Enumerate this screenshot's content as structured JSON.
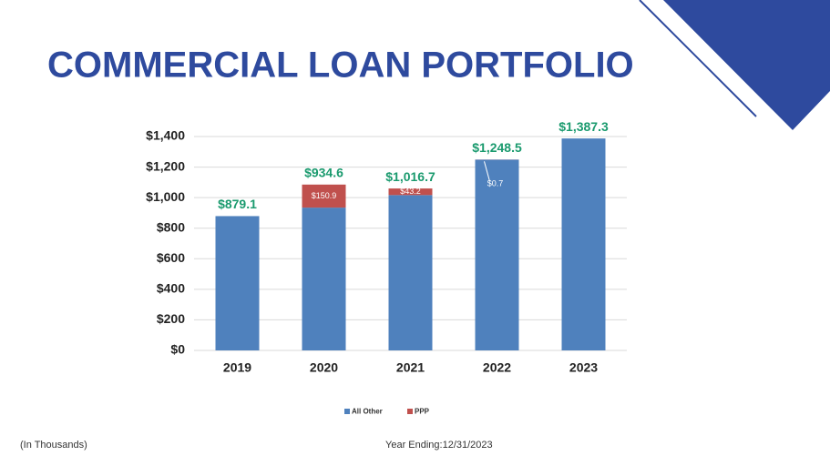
{
  "chart_data": {
    "type": "stacked_bar",
    "title": "COMMERCIAL LOAN PORTFOLIO",
    "categories": [
      "2019",
      "2020",
      "2021",
      "2022",
      "2023"
    ],
    "series": [
      {
        "name": "All Other",
        "color": "#4f81bd",
        "values": [
          879.1,
          934.6,
          1016.7,
          1248.5,
          1387.3
        ],
        "value_labels": [
          "$879.1",
          "$934.6",
          "$1,016.7",
          "$1,248.5",
          "$1,387.3"
        ]
      },
      {
        "name": "PPP",
        "color": "#c0504d",
        "values": [
          null,
          150.9,
          43.2,
          0.7,
          null
        ],
        "value_labels": [
          null,
          "$150.9",
          "$43.2",
          "$0.7",
          null
        ]
      }
    ],
    "ylim": [
      0,
      1400
    ],
    "yticks": [
      {
        "value": 0,
        "label": "$0"
      },
      {
        "value": 200,
        "label": "$200"
      },
      {
        "value": 400,
        "label": "$400"
      },
      {
        "value": 600,
        "label": "$600"
      },
      {
        "value": 800,
        "label": "$800"
      },
      {
        "value": 1000,
        "label": "$1,000"
      },
      {
        "value": 1200,
        "label": "$1,200"
      },
      {
        "value": 1400,
        "label": "$1,400"
      }
    ],
    "grid": true,
    "legend": "bottom",
    "footnote": "(In Thousands)",
    "date_note": "Year Ending:12/31/2023"
  }
}
